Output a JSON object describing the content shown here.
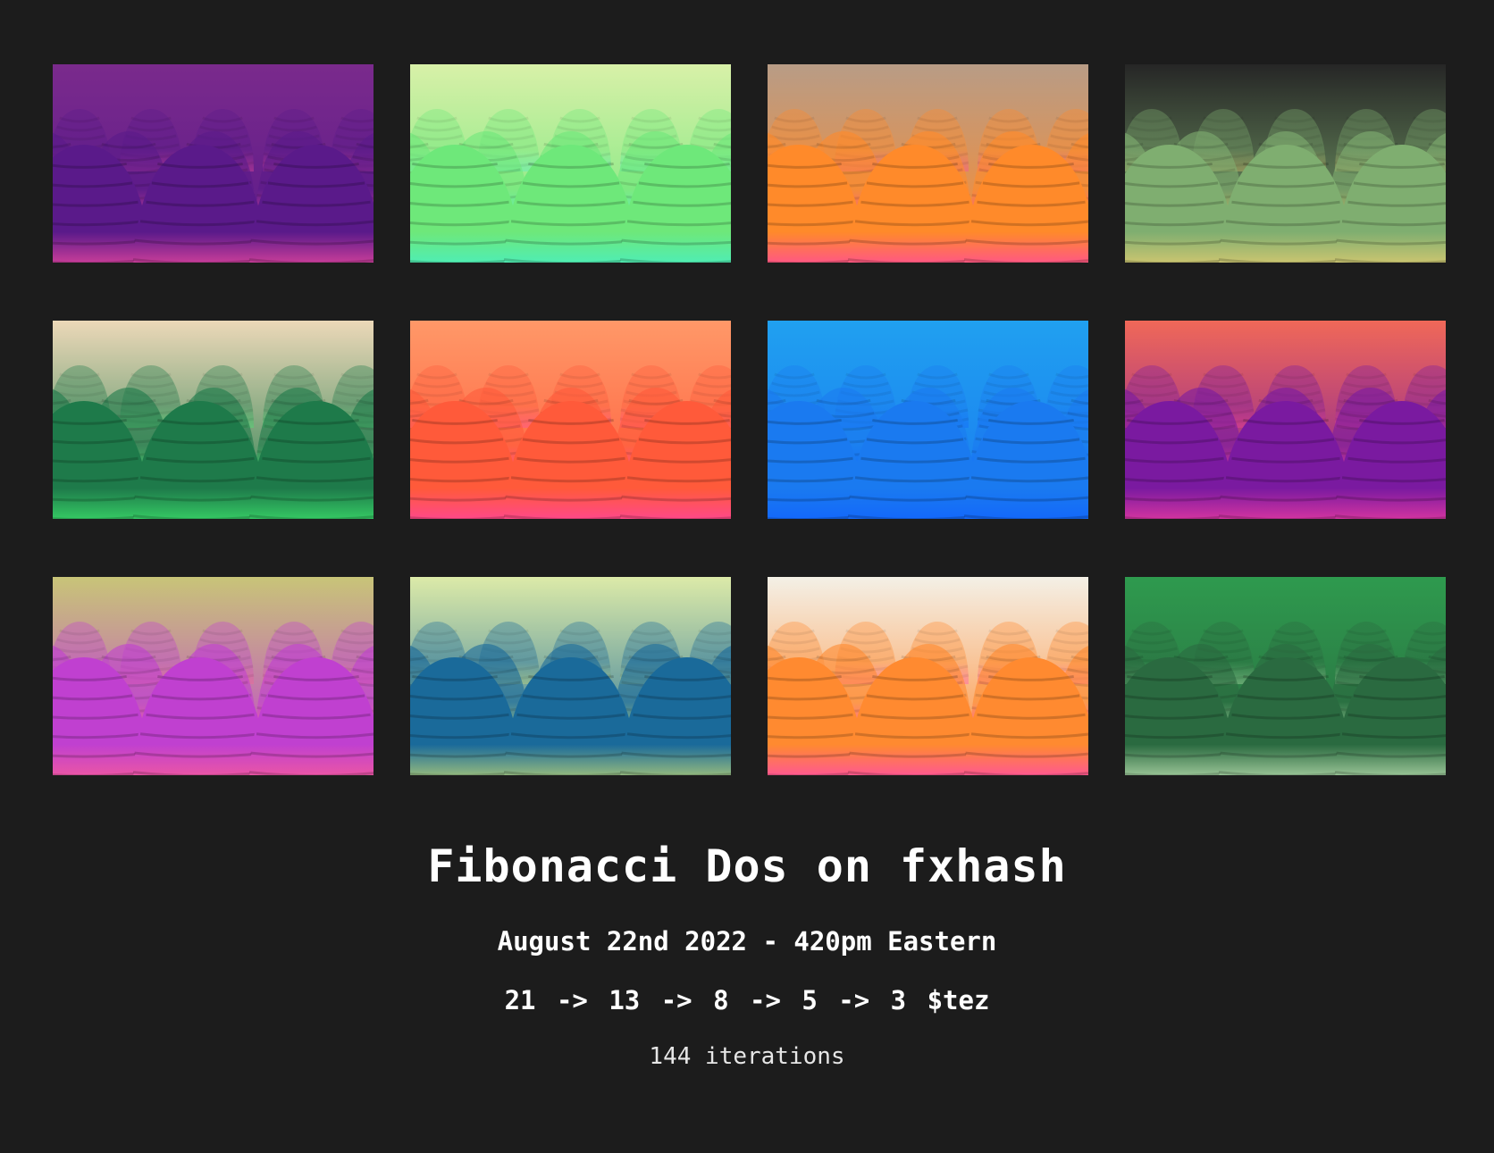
{
  "page": {
    "title": "Fibonacci Dos on fxhash",
    "date": "August 22nd 2022 - 420pm Eastern",
    "prices": "21 -> 13 -> 8 -> 5 -> 3 $tez",
    "iterations": "144 iterations"
  },
  "colors": {
    "background": "#1c1c1c",
    "text": "#ffffff"
  },
  "gallery": {
    "images": [
      {
        "name": "iteration-preview",
        "sky": "#7a2a8c",
        "near": "#5a1a8a",
        "glow": "#ff4fa0"
      },
      {
        "name": "iteration-preview",
        "sky": "#d8f0a8",
        "near": "#6ee87a",
        "glow": "#40f0d0"
      },
      {
        "name": "iteration-preview",
        "sky": "#b89c86",
        "near": "#ff8a2a",
        "glow": "#ff3fb0"
      },
      {
        "name": "iteration-preview",
        "sky": "#262626",
        "near": "#7fae70",
        "glow": "#f0d070"
      },
      {
        "name": "iteration-preview",
        "sky": "#ecd8b8",
        "near": "#1e7a4a",
        "glow": "#40f070"
      },
      {
        "name": "iteration-preview",
        "sky": "#ff9868",
        "near": "#ff5a3a",
        "glow": "#ff40b0"
      },
      {
        "name": "iteration-preview",
        "sky": "#20a0f0",
        "near": "#1a7af0",
        "glow": "#1060ff"
      },
      {
        "name": "iteration-preview",
        "sky": "#f06858",
        "near": "#7a1aa0",
        "glow": "#ff40a0"
      },
      {
        "name": "iteration-preview",
        "sky": "#c8c478",
        "near": "#c040d0",
        "glow": "#ff6090"
      },
      {
        "name": "iteration-preview",
        "sky": "#dceaa8",
        "near": "#1a6a9a",
        "glow": "#d0e070"
      },
      {
        "name": "iteration-preview",
        "sky": "#f4f0e6",
        "near": "#ff8a30",
        "glow": "#ff40c0"
      },
      {
        "name": "iteration-preview",
        "sky": "#2e9a4e",
        "near": "#2a6a40",
        "glow": "#d0f0c0"
      }
    ]
  }
}
